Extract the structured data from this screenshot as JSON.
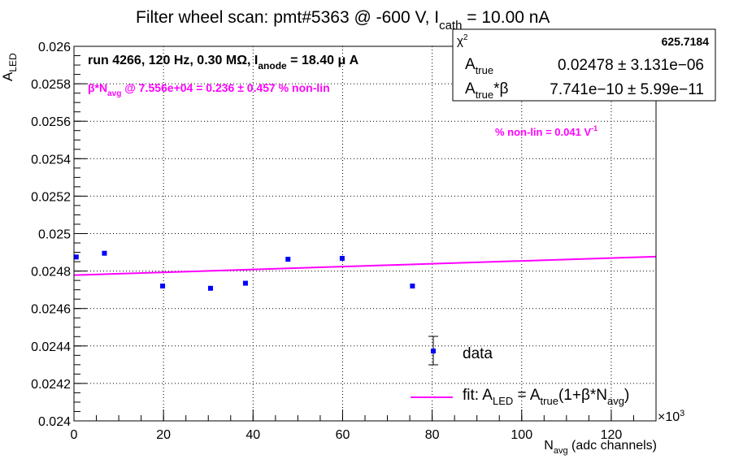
{
  "chart_data": {
    "type": "scatter",
    "title": {
      "main": "Filter wheel scan: pmt#5363 @  -600 V, I",
      "sub": "cath",
      "tail": " = 10.00 nA"
    },
    "xlabel": {
      "main": "N",
      "sub": "avg",
      "tail": " (adc channels)"
    },
    "ylabel": {
      "main": "A",
      "sub": "LED"
    },
    "x_multiplier": "×10",
    "x_multiplier_exp": "3",
    "xlim": [
      0,
      130
    ],
    "ylim": [
      0.024,
      0.026
    ],
    "x_ticks": [
      "0",
      "20",
      "40",
      "60",
      "80",
      "100",
      "120"
    ],
    "y_ticks": [
      "0.024",
      "0.0242",
      "0.0244",
      "0.0246",
      "0.0248",
      "0.025",
      "0.0252",
      "0.0254",
      "0.0256",
      "0.0258",
      "0.026"
    ],
    "grid": true,
    "series": [
      {
        "name": "data",
        "color": "#0000ff",
        "points": [
          {
            "x": 0.5,
            "y": 0.024875
          },
          {
            "x": 6.8,
            "y": 0.024895
          },
          {
            "x": 19.8,
            "y": 0.02472
          },
          {
            "x": 30.5,
            "y": 0.024708
          },
          {
            "x": 38.3,
            "y": 0.024735
          },
          {
            "x": 47.8,
            "y": 0.024863
          },
          {
            "x": 59.9,
            "y": 0.024868
          },
          {
            "x": 75.6,
            "y": 0.02472
          }
        ]
      }
    ],
    "fit": {
      "name": "fit",
      "color": "#ff00ff",
      "x": [
        0,
        130
      ],
      "y": [
        0.024778,
        0.024877
      ]
    },
    "annotations": {
      "run": {
        "main": "run 4266, 120 Hz, 0.30 MΩ, I",
        "sub": "anode",
        "tail": " = 18.40 μ A"
      },
      "beta": {
        "pre": "β*N",
        "sub": "avg",
        "tail": " @ 7.556e+04 = 0.236 ± 0.457 % non-lin"
      },
      "nonlin": {
        "main": "% non-lin = 0.041 V",
        "sup": "-1"
      }
    },
    "stats_box": {
      "chi2_label": "χ",
      "chi2_sup": "2",
      "chi2_value": "625.7184",
      "a_label": "A",
      "a_sub": "true",
      "a_value": "0.02478 ± 3.131e−06",
      "ab_label": "A",
      "ab_sub": "true",
      "ab_tail": "*β",
      "ab_value": "7.741e−10 ± 5.99e−11"
    },
    "legend": {
      "position": "bottom-right",
      "data_label": "data",
      "fit_pre": "fit: A",
      "fit_sub1": "LED",
      "fit_mid": " = A",
      "fit_sub2": "true",
      "fit_mid2": "(1+β*N",
      "fit_sub3": "avg",
      "fit_tail": ")"
    }
  }
}
